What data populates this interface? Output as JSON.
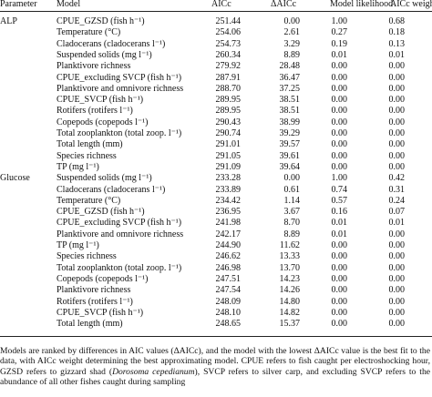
{
  "table": {
    "columns": [
      "Parameter",
      "Model",
      "AICc",
      "ΔAICc",
      "Model likelihood",
      "AICc weight"
    ],
    "groups": [
      {
        "name": "ALP",
        "rows": [
          [
            "CPUE_GZSD (fish h⁻¹)",
            "251.44",
            "0.00",
            "1.00",
            "0.68"
          ],
          [
            "Temperature (°C)",
            "254.06",
            "2.61",
            "0.27",
            "0.18"
          ],
          [
            "Cladocerans (cladocerans l⁻¹)",
            "254.73",
            "3.29",
            "0.19",
            "0.13"
          ],
          [
            "Suspended solids (mg l⁻¹)",
            "260.34",
            "8.89",
            "0.01",
            "0.01"
          ],
          [
            "Planktivore richness",
            "279.92",
            "28.48",
            "0.00",
            "0.00"
          ],
          [
            "CPUE_excluding SVCP (fish h⁻¹)",
            "287.91",
            "36.47",
            "0.00",
            "0.00"
          ],
          [
            "Planktivore and omnivore richness",
            "288.70",
            "37.25",
            "0.00",
            "0.00"
          ],
          [
            "CPUE_SVCP (fish h⁻¹)",
            "289.95",
            "38.51",
            "0.00",
            "0.00"
          ],
          [
            "Rotifers (rotifers l⁻¹)",
            "289.95",
            "38.51",
            "0.00",
            "0.00"
          ],
          [
            "Copepods (copepods l⁻¹)",
            "290.43",
            "38.99",
            "0.00",
            "0.00"
          ],
          [
            "Total zooplankton (total zoop. l⁻¹)",
            "290.74",
            "39.29",
            "0.00",
            "0.00"
          ],
          [
            "Total length (mm)",
            "291.01",
            "39.57",
            "0.00",
            "0.00"
          ],
          [
            "Species richness",
            "291.05",
            "39.61",
            "0.00",
            "0.00"
          ],
          [
            "TP (mg l⁻¹)",
            "291.09",
            "39.64",
            "0.00",
            "0.00"
          ]
        ]
      },
      {
        "name": "Glucose",
        "rows": [
          [
            "Suspended solids (mg l⁻¹)",
            "233.28",
            "0.00",
            "1.00",
            "0.42"
          ],
          [
            "Cladocerans (cladocerans l⁻¹)",
            "233.89",
            "0.61",
            "0.74",
            "0.31"
          ],
          [
            "Temperature (°C)",
            "234.42",
            "1.14",
            "0.57",
            "0.24"
          ],
          [
            "CPUE_GZSD (fish h⁻¹)",
            "236.95",
            "3.67",
            "0.16",
            "0.07"
          ],
          [
            "CPUE_excluding SVCP (fish h⁻¹)",
            "241.98",
            "8.70",
            "0.01",
            "0.01"
          ],
          [
            "Planktivore and omnivore richness",
            "242.17",
            "8.89",
            "0.01",
            "0.00"
          ],
          [
            "TP (mg l⁻¹)",
            "244.90",
            "11.62",
            "0.00",
            "0.00"
          ],
          [
            "Species richness",
            "246.62",
            "13.33",
            "0.00",
            "0.00"
          ],
          [
            "Total zooplankton (total zoop. l⁻¹)",
            "246.98",
            "13.70",
            "0.00",
            "0.00"
          ],
          [
            "Copepods (copepods l⁻¹)",
            "247.51",
            "14.23",
            "0.00",
            "0.00"
          ],
          [
            "Planktivore richness",
            "247.54",
            "14.26",
            "0.00",
            "0.00"
          ],
          [
            "Rotifers (rotifers l⁻¹)",
            "248.09",
            "14.80",
            "0.00",
            "0.00"
          ],
          [
            "CPUE_SVCP (fish h⁻¹)",
            "248.10",
            "14.82",
            "0.00",
            "0.00"
          ],
          [
            "Total length (mm)",
            "248.65",
            "15.37",
            "0.00",
            "0.00"
          ]
        ]
      }
    ]
  },
  "caption": [
    "Models are ranked by differences in AIC values (ΔAICc), and the model with the lowest ΔAICc value is the best fit to the data, with AICc weight determining the best approximating model. CPUE refers to fish caught per electroshocking hour, GZSD refers to gizzard shad (",
    "Dorosoma cepedianum",
    "), SVCP refers to silver carp, and excluding SVCP refers to the abundance of all other fishes caught during sampling"
  ]
}
